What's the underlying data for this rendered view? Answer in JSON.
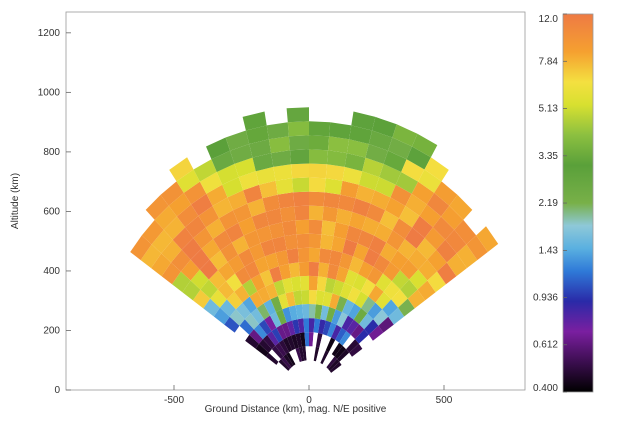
{
  "chart_data": {
    "type": "heatmap",
    "xlabel": "Ground Distance (km), mag. N/E positive",
    "ylabel": "Altitude (km)",
    "xlim": [
      -900,
      800
    ],
    "ylim": [
      0,
      1270
    ],
    "x_ticks": [
      -500,
      0,
      500
    ],
    "x_tick_labels": [
      "-500",
      "0",
      "500"
    ],
    "y_ticks": [
      0,
      200,
      400,
      600,
      800,
      1000,
      1200
    ],
    "y_tick_labels": [
      "0",
      "200",
      "400",
      "600",
      "800",
      "1000",
      "1200"
    ],
    "colorbar": {
      "scale": "log",
      "min": 0.4,
      "max": 12.0,
      "tick_values": [
        12.0,
        7.84,
        5.13,
        3.35,
        2.19,
        1.43,
        0.936,
        0.612,
        0.4
      ],
      "tick_labels": [
        "12.0",
        "7.84",
        "5.13",
        "3.35",
        "2.19",
        "1.43",
        "0.936",
        "0.612",
        "0.400"
      ],
      "colors": [
        "#000000",
        "#4a1060",
        "#7a1fa0",
        "#2a2aa8",
        "#2f7ad8",
        "#5ab0e0",
        "#8ec8d8",
        "#78b048",
        "#5aa03a",
        "#8cc040",
        "#d8e030",
        "#f4e040",
        "#f5a030",
        "#f08a40",
        "#ee7a44"
      ]
    },
    "grid_extent": {
      "range_min_km": 100,
      "range_max_km": 950,
      "azimuth_min_deg": -55,
      "azimuth_max_deg": 55
    }
  }
}
